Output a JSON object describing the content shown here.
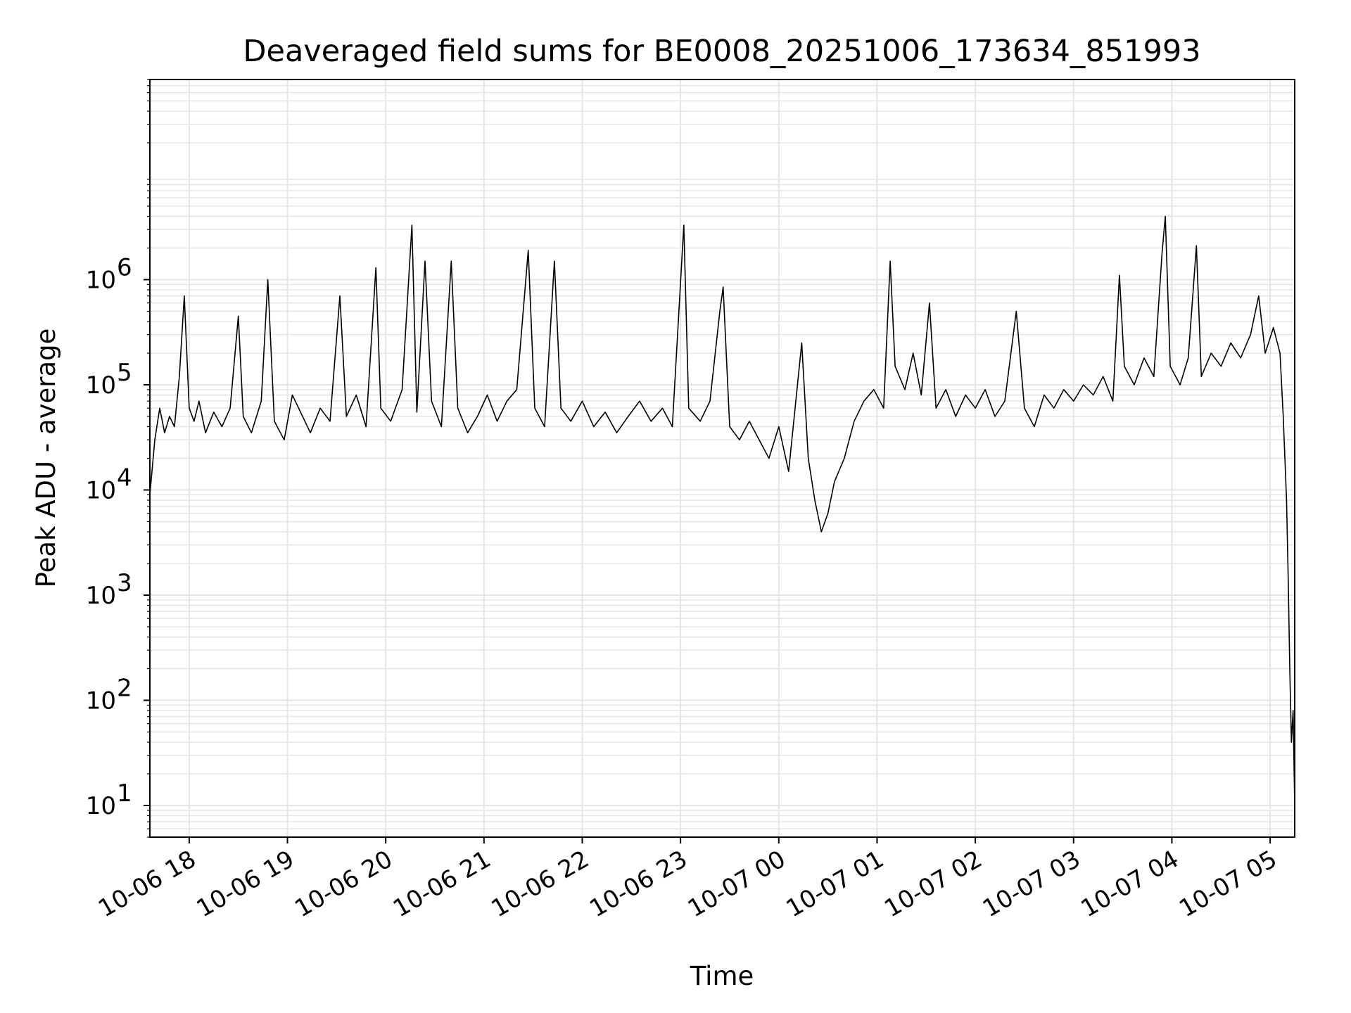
{
  "chart_data": {
    "type": "line",
    "title": "Deaveraged field sums for BE0008_20251006_173634_851993",
    "xlabel": "Time",
    "ylabel": "Peak ADU - average",
    "yscale": "log",
    "ylim": [
      5,
      80000000
    ],
    "xlim": [
      "2025-10-06 17:36",
      "2025-10-07 05:15"
    ],
    "grid": true,
    "line_color": "#000000",
    "grid_color": "#e5e5e5",
    "x_ticks": [
      {
        "value": "2025-10-06 18:00",
        "label": "10-06 18"
      },
      {
        "value": "2025-10-06 19:00",
        "label": "10-06 19"
      },
      {
        "value": "2025-10-06 20:00",
        "label": "10-06 20"
      },
      {
        "value": "2025-10-06 21:00",
        "label": "10-06 21"
      },
      {
        "value": "2025-10-06 22:00",
        "label": "10-06 22"
      },
      {
        "value": "2025-10-06 23:00",
        "label": "10-06 23"
      },
      {
        "value": "2025-10-07 00:00",
        "label": "10-07 00"
      },
      {
        "value": "2025-10-07 01:00",
        "label": "10-07 01"
      },
      {
        "value": "2025-10-07 02:00",
        "label": "10-07 02"
      },
      {
        "value": "2025-10-07 03:00",
        "label": "10-07 03"
      },
      {
        "value": "2025-10-07 04:00",
        "label": "10-07 04"
      },
      {
        "value": "2025-10-07 05:00",
        "label": "10-07 05"
      }
    ],
    "y_ticks": [
      {
        "value": 10,
        "base": "10",
        "exp": "1"
      },
      {
        "value": 100,
        "base": "10",
        "exp": "2"
      },
      {
        "value": 1000,
        "base": "10",
        "exp": "3"
      },
      {
        "value": 10000,
        "base": "10",
        "exp": "4"
      },
      {
        "value": 100000,
        "base": "10",
        "exp": "5"
      },
      {
        "value": 1000000,
        "base": "10",
        "exp": "6"
      }
    ],
    "series": [
      {
        "points": [
          [
            "2025-10-06 17:36",
            9000
          ],
          [
            "2025-10-06 17:39",
            30000
          ],
          [
            "2025-10-06 17:42",
            60000
          ],
          [
            "2025-10-06 17:45",
            35000
          ],
          [
            "2025-10-06 17:48",
            50000
          ],
          [
            "2025-10-06 17:51",
            40000
          ],
          [
            "2025-10-06 17:54",
            120000
          ],
          [
            "2025-10-06 17:57",
            700000
          ],
          [
            "2025-10-06 18:00",
            60000
          ],
          [
            "2025-10-06 18:03",
            45000
          ],
          [
            "2025-10-06 18:06",
            70000
          ],
          [
            "2025-10-06 18:10",
            35000
          ],
          [
            "2025-10-06 18:15",
            55000
          ],
          [
            "2025-10-06 18:20",
            40000
          ],
          [
            "2025-10-06 18:25",
            60000
          ],
          [
            "2025-10-06 18:30",
            450000
          ],
          [
            "2025-10-06 18:33",
            50000
          ],
          [
            "2025-10-06 18:38",
            35000
          ],
          [
            "2025-10-06 18:44",
            70000
          ],
          [
            "2025-10-06 18:48",
            1000000
          ],
          [
            "2025-10-06 18:52",
            45000
          ],
          [
            "2025-10-06 18:58",
            30000
          ],
          [
            "2025-10-06 19:03",
            80000
          ],
          [
            "2025-10-06 19:08",
            55000
          ],
          [
            "2025-10-06 19:14",
            35000
          ],
          [
            "2025-10-06 19:20",
            60000
          ],
          [
            "2025-10-06 19:26",
            45000
          ],
          [
            "2025-10-06 19:32",
            700000
          ],
          [
            "2025-10-06 19:36",
            50000
          ],
          [
            "2025-10-06 19:42",
            80000
          ],
          [
            "2025-10-06 19:48",
            40000
          ],
          [
            "2025-10-06 19:54",
            1300000
          ],
          [
            "2025-10-06 19:57",
            60000
          ],
          [
            "2025-10-06 20:03",
            45000
          ],
          [
            "2025-10-06 20:10",
            90000
          ],
          [
            "2025-10-06 20:16",
            3300000
          ],
          [
            "2025-10-06 20:19",
            55000
          ],
          [
            "2025-10-06 20:24",
            1500000
          ],
          [
            "2025-10-06 20:28",
            70000
          ],
          [
            "2025-10-06 20:34",
            40000
          ],
          [
            "2025-10-06 20:40",
            1500000
          ],
          [
            "2025-10-06 20:44",
            60000
          ],
          [
            "2025-10-06 20:50",
            35000
          ],
          [
            "2025-10-06 20:56",
            50000
          ],
          [
            "2025-10-06 21:02",
            80000
          ],
          [
            "2025-10-06 21:08",
            45000
          ],
          [
            "2025-10-06 21:14",
            70000
          ],
          [
            "2025-10-06 21:20",
            90000
          ],
          [
            "2025-10-06 21:27",
            1900000
          ],
          [
            "2025-10-06 21:31",
            60000
          ],
          [
            "2025-10-06 21:37",
            40000
          ],
          [
            "2025-10-06 21:43",
            1500000
          ],
          [
            "2025-10-06 21:47",
            60000
          ],
          [
            "2025-10-06 21:53",
            45000
          ],
          [
            "2025-10-06 22:00",
            70000
          ],
          [
            "2025-10-06 22:07",
            40000
          ],
          [
            "2025-10-06 22:14",
            55000
          ],
          [
            "2025-10-06 22:21",
            35000
          ],
          [
            "2025-10-06 22:28",
            50000
          ],
          [
            "2025-10-06 22:35",
            70000
          ],
          [
            "2025-10-06 22:42",
            45000
          ],
          [
            "2025-10-06 22:49",
            60000
          ],
          [
            "2025-10-06 22:55",
            40000
          ],
          [
            "2025-10-06 23:02",
            3300000
          ],
          [
            "2025-10-06 23:05",
            60000
          ],
          [
            "2025-10-06 23:12",
            45000
          ],
          [
            "2025-10-06 23:18",
            70000
          ],
          [
            "2025-10-06 23:24",
            500000
          ],
          [
            "2025-10-06 23:26",
            850000
          ],
          [
            "2025-10-06 23:30",
            40000
          ],
          [
            "2025-10-06 23:36",
            30000
          ],
          [
            "2025-10-06 23:42",
            45000
          ],
          [
            "2025-10-06 23:48",
            30000
          ],
          [
            "2025-10-06 23:54",
            20000
          ],
          [
            "2025-10-07 00:00",
            40000
          ],
          [
            "2025-10-07 00:06",
            15000
          ],
          [
            "2025-10-07 00:14",
            250000
          ],
          [
            "2025-10-07 00:18",
            20000
          ],
          [
            "2025-10-07 00:22",
            8000
          ],
          [
            "2025-10-07 00:26",
            4000
          ],
          [
            "2025-10-07 00:30",
            6000
          ],
          [
            "2025-10-07 00:34",
            12000
          ],
          [
            "2025-10-07 00:40",
            20000
          ],
          [
            "2025-10-07 00:46",
            45000
          ],
          [
            "2025-10-07 00:52",
            70000
          ],
          [
            "2025-10-07 00:58",
            90000
          ],
          [
            "2025-10-07 01:04",
            60000
          ],
          [
            "2025-10-07 01:08",
            1500000
          ],
          [
            "2025-10-07 01:11",
            150000
          ],
          [
            "2025-10-07 01:17",
            90000
          ],
          [
            "2025-10-07 01:22",
            200000
          ],
          [
            "2025-10-07 01:27",
            80000
          ],
          [
            "2025-10-07 01:32",
            600000
          ],
          [
            "2025-10-07 01:36",
            60000
          ],
          [
            "2025-10-07 01:42",
            90000
          ],
          [
            "2025-10-07 01:48",
            50000
          ],
          [
            "2025-10-07 01:54",
            80000
          ],
          [
            "2025-10-07 02:00",
            60000
          ],
          [
            "2025-10-07 02:06",
            90000
          ],
          [
            "2025-10-07 02:12",
            50000
          ],
          [
            "2025-10-07 02:18",
            70000
          ],
          [
            "2025-10-07 02:25",
            500000
          ],
          [
            "2025-10-07 02:30",
            60000
          ],
          [
            "2025-10-07 02:36",
            40000
          ],
          [
            "2025-10-07 02:42",
            80000
          ],
          [
            "2025-10-07 02:48",
            60000
          ],
          [
            "2025-10-07 02:54",
            90000
          ],
          [
            "2025-10-07 03:00",
            70000
          ],
          [
            "2025-10-07 03:06",
            100000
          ],
          [
            "2025-10-07 03:12",
            80000
          ],
          [
            "2025-10-07 03:18",
            120000
          ],
          [
            "2025-10-07 03:24",
            70000
          ],
          [
            "2025-10-07 03:28",
            1100000
          ],
          [
            "2025-10-07 03:31",
            150000
          ],
          [
            "2025-10-07 03:37",
            100000
          ],
          [
            "2025-10-07 03:43",
            180000
          ],
          [
            "2025-10-07 03:49",
            120000
          ],
          [
            "2025-10-07 03:54",
            1800000
          ],
          [
            "2025-10-07 03:56",
            4000000
          ],
          [
            "2025-10-07 03:59",
            150000
          ],
          [
            "2025-10-07 04:05",
            100000
          ],
          [
            "2025-10-07 04:10",
            180000
          ],
          [
            "2025-10-07 04:15",
            2100000
          ],
          [
            "2025-10-07 04:18",
            120000
          ],
          [
            "2025-10-07 04:24",
            200000
          ],
          [
            "2025-10-07 04:30",
            150000
          ],
          [
            "2025-10-07 04:36",
            250000
          ],
          [
            "2025-10-07 04:42",
            180000
          ],
          [
            "2025-10-07 04:48",
            300000
          ],
          [
            "2025-10-07 04:53",
            700000
          ],
          [
            "2025-10-07 04:57",
            200000
          ],
          [
            "2025-10-07 05:02",
            350000
          ],
          [
            "2025-10-07 05:06",
            200000
          ],
          [
            "2025-10-07 05:08",
            50000
          ],
          [
            "2025-10-07 05:10",
            8000
          ],
          [
            "2025-10-07 05:11",
            1500
          ],
          [
            "2025-10-07 05:12",
            200
          ],
          [
            "2025-10-07 05:13",
            40
          ],
          [
            "2025-10-07 05:14",
            80
          ],
          [
            "2025-10-07 05:15",
            10
          ]
        ]
      }
    ]
  }
}
